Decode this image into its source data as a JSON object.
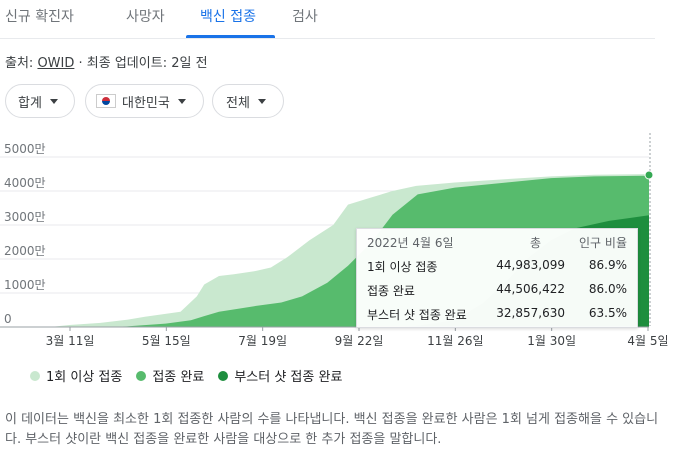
{
  "tabs": [
    {
      "label": "신규 확진자"
    },
    {
      "label": "사망자"
    },
    {
      "label": "백신 접종",
      "active": true
    },
    {
      "label": "검사"
    }
  ],
  "source": {
    "prefix": "출처:",
    "link": "OWID",
    "separator": " · ",
    "update": "최종 업데이트: 2일 전"
  },
  "filters": {
    "metric": "합계",
    "country": "대한민국",
    "scope": "전체"
  },
  "colors": {
    "first_dose": "#c9e8cf",
    "full": "#57bb6d",
    "booster": "#1e8e3e",
    "accent": "#1a73e8"
  },
  "chart_data": {
    "type": "area",
    "y_unit": "만",
    "ylim": [
      0,
      5000
    ],
    "yticks": [
      0,
      1000,
      2000,
      3000,
      4000,
      5000
    ],
    "ytick_labels": [
      "0",
      "1000만",
      "2000만",
      "3000만",
      "4000만",
      "5000만"
    ],
    "x_tick_labels": [
      "3월 11일",
      "5월 15일",
      "7월 19일",
      "9월 22일",
      "11월 26일",
      "1월 30일",
      "4월 5일"
    ],
    "x_range": [
      "2021-02-26",
      "2022-04-06"
    ],
    "series": [
      {
        "name": "1회 이상 접종",
        "color": "#c9e8cf",
        "points": [
          [
            "2021-02-26",
            0
          ],
          [
            "2021-03-11",
            60
          ],
          [
            "2021-04-01",
            120
          ],
          [
            "2021-04-20",
            220
          ],
          [
            "2021-05-01",
            300
          ],
          [
            "2021-05-25",
            450
          ],
          [
            "2021-06-05",
            900
          ],
          [
            "2021-06-10",
            1250
          ],
          [
            "2021-06-20",
            1500
          ],
          [
            "2021-06-30",
            1550
          ],
          [
            "2021-07-15",
            1650
          ],
          [
            "2021-07-25",
            1750
          ],
          [
            "2021-08-05",
            2050
          ],
          [
            "2021-08-20",
            2550
          ],
          [
            "2021-09-05",
            3000
          ],
          [
            "2021-09-15",
            3600
          ],
          [
            "2021-09-30",
            3800
          ],
          [
            "2021-10-15",
            4000
          ],
          [
            "2021-10-31",
            4150
          ],
          [
            "2021-11-26",
            4250
          ],
          [
            "2021-12-31",
            4350
          ],
          [
            "2022-01-30",
            4430
          ],
          [
            "2022-02-28",
            4480
          ],
          [
            "2022-04-06",
            4498
          ]
        ]
      },
      {
        "name": "접종 완료",
        "color": "#57bb6d",
        "points": [
          [
            "2021-02-26",
            0
          ],
          [
            "2021-04-01",
            0
          ],
          [
            "2021-04-20",
            20
          ],
          [
            "2021-05-15",
            100
          ],
          [
            "2021-06-01",
            200
          ],
          [
            "2021-06-10",
            320
          ],
          [
            "2021-06-20",
            450
          ],
          [
            "2021-07-15",
            620
          ],
          [
            "2021-08-01",
            720
          ],
          [
            "2021-08-15",
            900
          ],
          [
            "2021-09-01",
            1300
          ],
          [
            "2021-09-15",
            1800
          ],
          [
            "2021-10-01",
            2500
          ],
          [
            "2021-10-15",
            3300
          ],
          [
            "2021-11-01",
            3900
          ],
          [
            "2021-11-26",
            4100
          ],
          [
            "2021-12-31",
            4250
          ],
          [
            "2022-01-30",
            4380
          ],
          [
            "2022-02-28",
            4430
          ],
          [
            "2022-04-06",
            4451
          ]
        ]
      },
      {
        "name": "부스터 샷 접종 완료",
        "color": "#1e8e3e",
        "points": [
          [
            "2021-02-26",
            0
          ],
          [
            "2021-10-10",
            0
          ],
          [
            "2021-10-31",
            30
          ],
          [
            "2021-11-26",
            200
          ],
          [
            "2021-12-15",
            700
          ],
          [
            "2021-12-31",
            1350
          ],
          [
            "2022-01-15",
            2050
          ],
          [
            "2022-01-30",
            2550
          ],
          [
            "2022-02-15",
            2900
          ],
          [
            "2022-03-10",
            3120
          ],
          [
            "2022-04-06",
            3286
          ]
        ]
      }
    ]
  },
  "tooltip": {
    "date": "2022년 4월 6일",
    "col_total": "총",
    "col_ratio": "인구 비율",
    "rows": [
      {
        "label": "1회 이상 접종",
        "total": "44,983,099",
        "ratio": "86.9%"
      },
      {
        "label": "접종 완료",
        "total": "44,506,422",
        "ratio": "86.0%"
      },
      {
        "label": "부스터 샷 접종 완료",
        "total": "32,857,630",
        "ratio": "63.5%"
      }
    ]
  },
  "legend": [
    {
      "label": "1회 이상 접종",
      "color": "#c9e8cf"
    },
    {
      "label": "접종 완료",
      "color": "#57bb6d"
    },
    {
      "label": "부스터 샷 접종 완료",
      "color": "#1e8e3e"
    }
  ],
  "description": "이 데이터는 백신을 최소한 1회 접종한 사람의 수를 나타냅니다. 백신 접종을 완료한 사람은 1회 넘게 접종해을 수 있습니다. 부스터 샷이란 백신 접종을 완료한 사람을 대상으로 한 추가 접종을 말합니다."
}
